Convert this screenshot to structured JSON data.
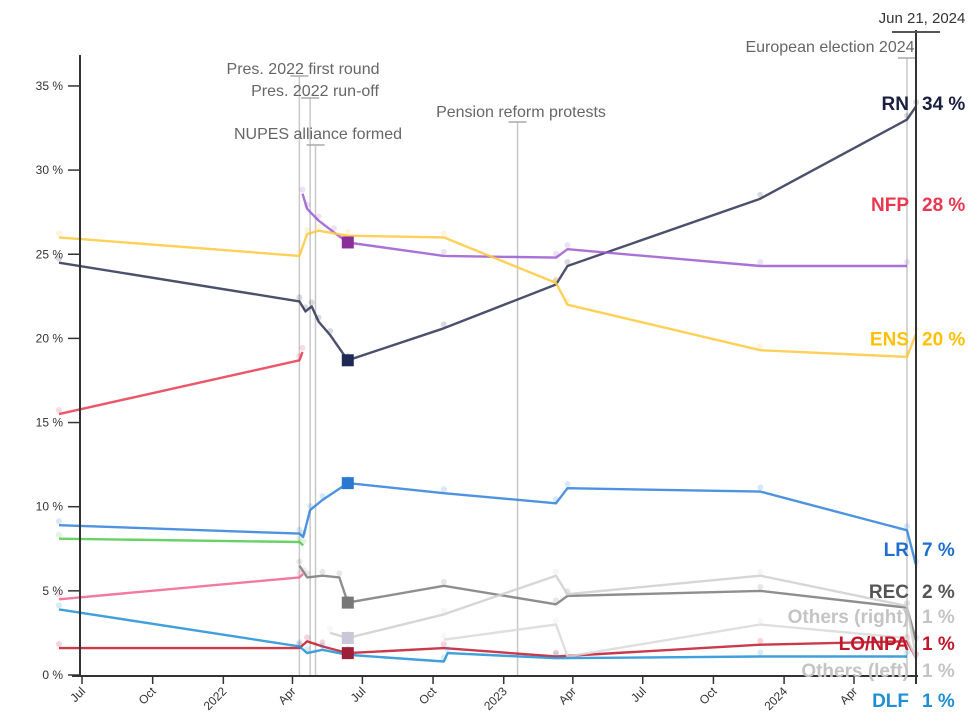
{
  "chart_data": {
    "type": "line",
    "title": "",
    "xlabel": "",
    "ylabel": "",
    "ylim": [
      0,
      37
    ],
    "y_ticks": [
      0,
      5,
      10,
      15,
      20,
      25,
      30,
      35
    ],
    "y_tick_labels": [
      "0 %",
      "5 %",
      "10 %",
      "15 %",
      "20 %",
      "25 %",
      "30 %",
      "35 %"
    ],
    "x_ticks": [
      {
        "date": "2021-07-01",
        "label": "Jul"
      },
      {
        "date": "2021-10-01",
        "label": "Oct"
      },
      {
        "date": "2022-01-01",
        "label": "2022"
      },
      {
        "date": "2022-04-01",
        "label": "Apr"
      },
      {
        "date": "2022-07-01",
        "label": "Jul"
      },
      {
        "date": "2022-10-01",
        "label": "Oct"
      },
      {
        "date": "2023-01-01",
        "label": "2023"
      },
      {
        "date": "2023-04-01",
        "label": "Apr"
      },
      {
        "date": "2023-07-01",
        "label": "Jul"
      },
      {
        "date": "2023-10-01",
        "label": "Oct"
      },
      {
        "date": "2024-01-01",
        "label": "2024"
      },
      {
        "date": "2024-04-01",
        "label": "Apr"
      }
    ],
    "xlim": [
      "2021-06-01",
      "2024-06-21"
    ],
    "current_date_label": "Jun 21, 2024",
    "events": [
      {
        "date": "2022-04-10",
        "label": "Pres. 2022 first round"
      },
      {
        "date": "2022-04-24",
        "label": "Pres. 2022 run-off"
      },
      {
        "date": "2022-05-01",
        "label": "NUPES alliance formed"
      },
      {
        "date": "2023-01-19",
        "label": "Pension reform protests"
      },
      {
        "date": "2024-06-09",
        "label": "European election 2024"
      }
    ],
    "series": [
      {
        "name": "RN",
        "label": "RN",
        "value_label": "34 %",
        "color": "#2b3252",
        "points": [
          [
            "2021-06-01",
            24.5
          ],
          [
            "2022-04-10",
            22.2
          ],
          [
            "2022-04-18",
            21.6
          ],
          [
            "2022-04-26",
            21.9
          ],
          [
            "2022-05-05",
            21.0
          ],
          [
            "2022-05-20",
            20.2
          ],
          [
            "2022-06-12",
            18.7
          ],
          [
            "2022-10-15",
            20.6
          ],
          [
            "2023-03-10",
            23.2
          ],
          [
            "2023-03-25",
            24.3
          ],
          [
            "2023-12-01",
            28.3
          ],
          [
            "2024-06-09",
            33.0
          ],
          [
            "2024-06-21",
            33.8
          ]
        ]
      },
      {
        "name": "NFP",
        "label": "NFP",
        "value_label": "28 %",
        "color": "#e8384f",
        "points": [
          [
            "2021-06-01",
            15.5
          ],
          [
            "2022-04-10",
            18.7
          ],
          [
            "2022-04-14",
            19.2
          ]
        ]
      },
      {
        "name": "NUPES",
        "label": "",
        "value_label": "",
        "color": "#9b59d0",
        "points": [
          [
            "2022-04-14",
            28.6
          ],
          [
            "2022-04-20",
            27.7
          ],
          [
            "2022-05-05",
            27.0
          ],
          [
            "2022-05-25",
            26.3
          ],
          [
            "2022-06-12",
            25.7
          ],
          [
            "2022-10-15",
            24.9
          ],
          [
            "2023-03-10",
            24.8
          ],
          [
            "2023-03-25",
            25.3
          ],
          [
            "2023-12-01",
            24.3
          ],
          [
            "2024-06-09",
            24.3
          ]
        ]
      },
      {
        "name": "ENS",
        "label": "ENS",
        "value_label": "20 %",
        "color": "#ffc83d",
        "points": [
          [
            "2021-06-01",
            26.0
          ],
          [
            "2022-04-10",
            24.9
          ],
          [
            "2022-04-20",
            26.2
          ],
          [
            "2022-05-05",
            26.4
          ],
          [
            "2022-06-12",
            26.1
          ],
          [
            "2022-10-15",
            26.0
          ],
          [
            "2023-03-10",
            23.3
          ],
          [
            "2023-03-25",
            22.0
          ],
          [
            "2023-12-01",
            19.3
          ],
          [
            "2024-06-09",
            18.9
          ],
          [
            "2024-06-21",
            20.3
          ]
        ]
      },
      {
        "name": "LR",
        "label": "LR",
        "value_label": "7 %",
        "color": "#2f80d9",
        "points": [
          [
            "2021-06-01",
            8.9
          ],
          [
            "2022-04-10",
            8.4
          ],
          [
            "2022-04-15",
            8.2
          ],
          [
            "2022-04-24",
            9.8
          ],
          [
            "2022-05-10",
            10.4
          ],
          [
            "2022-06-12",
            11.4
          ],
          [
            "2022-10-15",
            10.8
          ],
          [
            "2023-03-10",
            10.2
          ],
          [
            "2023-03-25",
            11.1
          ],
          [
            "2023-12-01",
            10.9
          ],
          [
            "2024-06-09",
            8.6
          ],
          [
            "2024-06-21",
            6.5
          ]
        ]
      },
      {
        "name": "Other green",
        "label": "",
        "value_label": "",
        "color": "#4dc94d",
        "points": [
          [
            "2021-06-01",
            8.1
          ],
          [
            "2022-04-10",
            7.9
          ],
          [
            "2022-04-15",
            7.7
          ]
        ]
      },
      {
        "name": "PS",
        "label": "",
        "value_label": "",
        "color": "#f0648c",
        "points": [
          [
            "2021-06-01",
            4.5
          ],
          [
            "2022-04-10",
            5.8
          ],
          [
            "2022-04-15",
            6.0
          ]
        ]
      },
      {
        "name": "REC",
        "label": "REC",
        "value_label": "2 %",
        "color": "#7a7a7a",
        "points": [
          [
            "2022-04-10",
            6.5
          ],
          [
            "2022-04-20",
            5.8
          ],
          [
            "2022-05-10",
            5.9
          ],
          [
            "2022-06-01",
            5.8
          ],
          [
            "2022-06-12",
            4.3
          ],
          [
            "2022-10-15",
            5.3
          ],
          [
            "2023-03-10",
            4.2
          ],
          [
            "2023-03-25",
            4.7
          ],
          [
            "2023-12-01",
            5.0
          ],
          [
            "2024-06-09",
            4.0
          ],
          [
            "2024-06-21",
            2.0
          ]
        ]
      },
      {
        "name": "Others (right)",
        "label": "Others (right)",
        "value_label": "1 %",
        "color": "#cfcfcf",
        "points": [
          [
            "2022-05-20",
            2.5
          ],
          [
            "2022-06-12",
            2.2
          ],
          [
            "2022-10-15",
            3.6
          ],
          [
            "2023-03-10",
            5.9
          ],
          [
            "2023-03-25",
            4.8
          ],
          [
            "2023-12-01",
            5.9
          ],
          [
            "2024-06-09",
            4.1
          ],
          [
            "2024-06-21",
            1.0
          ]
        ]
      },
      {
        "name": "LO/NPA",
        "label": "LO/NPA",
        "value_label": "1 %",
        "color": "#c0182a",
        "points": [
          [
            "2021-06-01",
            1.6
          ],
          [
            "2022-04-10",
            1.6
          ],
          [
            "2022-04-20",
            2.0
          ],
          [
            "2022-05-10",
            1.7
          ],
          [
            "2022-06-12",
            1.3
          ],
          [
            "2022-10-15",
            1.6
          ],
          [
            "2023-03-10",
            1.1
          ],
          [
            "2023-12-01",
            1.8
          ],
          [
            "2024-06-09",
            2.0
          ],
          [
            "2024-06-21",
            1.0
          ]
        ]
      },
      {
        "name": "Others (left)",
        "label": "Others (left)",
        "value_label": "1 %",
        "color": "#d9d9d9",
        "points": [
          [
            "2022-10-15",
            2.1
          ],
          [
            "2023-03-10",
            3.0
          ],
          [
            "2023-03-25",
            1.1
          ],
          [
            "2023-12-01",
            3.0
          ],
          [
            "2024-06-09",
            2.2
          ],
          [
            "2024-06-21",
            1.0
          ]
        ]
      },
      {
        "name": "DLF",
        "label": "DLF",
        "value_label": "1 %",
        "color": "#1f8fd6",
        "points": [
          [
            "2021-06-01",
            3.9
          ],
          [
            "2022-04-10",
            1.7
          ],
          [
            "2022-04-20",
            1.3
          ],
          [
            "2022-05-10",
            1.5
          ],
          [
            "2022-06-12",
            1.2
          ],
          [
            "2022-10-15",
            0.8
          ],
          [
            "2022-10-20",
            1.3
          ],
          [
            "2023-03-10",
            1.0
          ],
          [
            "2023-12-01",
            1.1
          ],
          [
            "2024-06-09",
            1.1
          ]
        ]
      }
    ],
    "end_labels": [
      {
        "text": "RN",
        "value": "34 %",
        "color": "#1a2040",
        "y": 34
      },
      {
        "text": "NFP",
        "value": "28 %",
        "color": "#e8384f",
        "y": 28
      },
      {
        "text": "ENS",
        "value": "20 %",
        "color": "#ffc107",
        "y": 20
      },
      {
        "text": "LR",
        "value": "7 %",
        "color": "#1f6fd0",
        "y": 7.5
      },
      {
        "text": "REC",
        "value": "2 %",
        "color": "#555555",
        "y": 5.0
      },
      {
        "text": "Others (right)",
        "value": "1 %",
        "color": "#c4c4c4",
        "y": 3.5
      },
      {
        "text": "LO/NPA",
        "value": "1 %",
        "color": "#c0182a",
        "y": 1.9
      },
      {
        "text": "Others (left)",
        "value": "1 %",
        "color": "#c4c4c4",
        "y": 0.3
      },
      {
        "text": "DLF",
        "value": "1 %",
        "color": "#1f8fd6",
        "y": -1.5
      }
    ],
    "markers": [
      {
        "series": "NUPES",
        "date": "2022-06-12",
        "value": 25.7,
        "color": "#8a2f9a"
      },
      {
        "series": "RN",
        "date": "2022-06-12",
        "value": 18.7,
        "color": "#1e2a55"
      },
      {
        "series": "LR",
        "date": "2022-06-12",
        "value": 11.4,
        "color": "#2a78d0"
      },
      {
        "series": "REC",
        "date": "2022-06-12",
        "value": 4.3,
        "color": "#777777"
      },
      {
        "series": "Others (right)",
        "date": "2022-06-12",
        "value": 2.2,
        "color": "#c8c8d8"
      },
      {
        "series": "LO/NPA",
        "date": "2022-06-12",
        "value": 1.3,
        "color": "#9e2038"
      }
    ],
    "grid": false,
    "legend": "none (direct end labels on right)"
  }
}
